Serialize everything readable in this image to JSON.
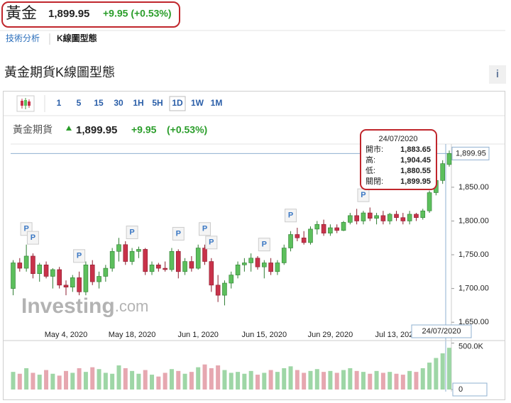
{
  "header": {
    "name": "黃金",
    "price": "1,899.95",
    "change": "+9.95 (+0.53%)"
  },
  "nav": {
    "items": [
      "技術分析",
      "K線圖型態"
    ]
  },
  "section_title": "黃金期貨K線圖型態",
  "info_icon": "i",
  "toolbar": {
    "intervals": [
      "1",
      "5",
      "15",
      "30",
      "1H",
      "5H",
      "1D",
      "1W",
      "1M"
    ],
    "active": "1D"
  },
  "quote": {
    "name": "黃金期貨",
    "price": "1,899.95",
    "change": "+9.95",
    "change_percent": "(+0.53%)"
  },
  "chart_data": {
    "type": "candlestick",
    "categories": [
      null,
      null,
      null,
      null,
      null,
      null,
      null,
      null,
      "May 4, 2020",
      null,
      null,
      null,
      null,
      null,
      null,
      null,
      null,
      null,
      "May 18, 2020",
      null,
      null,
      null,
      null,
      null,
      null,
      null,
      null,
      null,
      "Jun 1, 2020",
      null,
      null,
      null,
      null,
      null,
      null,
      null,
      null,
      null,
      "Jun 15, 2020",
      null,
      null,
      null,
      null,
      null,
      null,
      null,
      null,
      null,
      "Jun 29, 2020",
      null,
      null,
      null,
      null,
      null,
      null,
      null,
      null,
      null,
      "Jul 13, 2020",
      null,
      null,
      null,
      null,
      null,
      null,
      null,
      null
    ],
    "open": [
      1700,
      1738,
      1730,
      1748,
      1722,
      1735,
      1718,
      1728,
      1705,
      1702,
      1716,
      1695,
      1735,
      1710,
      1718,
      1730,
      1755,
      1765,
      1740,
      1755,
      1758,
      1725,
      1735,
      1730,
      1728,
      1755,
      1725,
      1740,
      1730,
      1760,
      1740,
      1705,
      1690,
      1708,
      1720,
      1735,
      1738,
      1745,
      1732,
      1738,
      1725,
      1738,
      1760,
      1780,
      1775,
      1768,
      1788,
      1795,
      1782,
      1790,
      1786,
      1798,
      1808,
      1800,
      1812,
      1804,
      1808,
      1800,
      1810,
      1805,
      1800,
      1810,
      1805,
      1815,
      1842,
      1860,
      1883.65
    ],
    "high": [
      1742,
      1745,
      1765,
      1752,
      1738,
      1740,
      1730,
      1732,
      1712,
      1720,
      1725,
      1740,
      1742,
      1725,
      1735,
      1760,
      1775,
      1770,
      1760,
      1762,
      1760,
      1740,
      1738,
      1740,
      1760,
      1758,
      1745,
      1748,
      1765,
      1765,
      1745,
      1720,
      1712,
      1725,
      1740,
      1745,
      1752,
      1748,
      1742,
      1745,
      1742,
      1765,
      1785,
      1790,
      1785,
      1792,
      1800,
      1802,
      1795,
      1795,
      1800,
      1812,
      1818,
      1815,
      1820,
      1812,
      1815,
      1812,
      1815,
      1812,
      1815,
      1812,
      1818,
      1845,
      1865,
      1890,
      1904.45
    ],
    "low": [
      1690,
      1725,
      1725,
      1715,
      1710,
      1715,
      1700,
      1700,
      1690,
      1695,
      1690,
      1690,
      1705,
      1700,
      1710,
      1725,
      1740,
      1735,
      1735,
      1745,
      1720,
      1720,
      1725,
      1725,
      1725,
      1715,
      1720,
      1725,
      1728,
      1735,
      1695,
      1680,
      1675,
      1700,
      1715,
      1725,
      1725,
      1728,
      1715,
      1720,
      1720,
      1735,
      1755,
      1770,
      1765,
      1765,
      1780,
      1778,
      1778,
      1782,
      1785,
      1795,
      1795,
      1795,
      1800,
      1795,
      1795,
      1795,
      1800,
      1795,
      1795,
      1800,
      1802,
      1812,
      1838,
      1855,
      1880.55
    ],
    "close": [
      1738,
      1730,
      1748,
      1722,
      1735,
      1718,
      1728,
      1705,
      1702,
      1716,
      1695,
      1735,
      1710,
      1718,
      1730,
      1755,
      1765,
      1740,
      1755,
      1758,
      1725,
      1735,
      1730,
      1728,
      1755,
      1725,
      1740,
      1730,
      1760,
      1740,
      1705,
      1690,
      1708,
      1720,
      1735,
      1738,
      1745,
      1732,
      1738,
      1725,
      1738,
      1760,
      1780,
      1775,
      1768,
      1788,
      1795,
      1782,
      1790,
      1786,
      1798,
      1808,
      1800,
      1812,
      1804,
      1808,
      1800,
      1810,
      1805,
      1800,
      1810,
      1805,
      1815,
      1842,
      1860,
      1885,
      1899.95
    ],
    "volume": [
      190000,
      170000,
      230000,
      180000,
      160000,
      210000,
      170000,
      150000,
      200000,
      180000,
      230000,
      190000,
      240000,
      220000,
      180000,
      170000,
      260000,
      230000,
      200000,
      170000,
      210000,
      160000,
      140000,
      180000,
      220000,
      200000,
      170000,
      190000,
      240000,
      270000,
      230000,
      260000,
      210000,
      180000,
      190000,
      170000,
      200000,
      160000,
      180000,
      210000,
      190000,
      230000,
      250000,
      210000,
      180000,
      200000,
      220000,
      190000,
      200000,
      180000,
      210000,
      230000,
      200000,
      190000,
      170000,
      200000,
      180000,
      190000,
      170000,
      160000,
      200000,
      190000,
      230000,
      290000,
      340000,
      390000,
      450000
    ],
    "up_color": "#5cbf5c",
    "down_color": "#c8324a",
    "volume_up_color": "#9ed6a6",
    "volume_down_color": "#e6a7b0",
    "ylim": [
      1646,
      1914
    ],
    "yticks": [
      {
        "value": 1650,
        "label": "1,650.00"
      },
      {
        "value": 1700,
        "label": "1,700.00"
      },
      {
        "value": 1750,
        "label": "1,750.00"
      },
      {
        "value": 1800,
        "label": "1,800.00"
      },
      {
        "value": 1850,
        "label": "1,850.00"
      }
    ],
    "last_price": {
      "value": 1899.95,
      "label": "1,899.95"
    },
    "volume_ylim": [
      0,
      520000
    ],
    "volume_yticks": [
      {
        "value": 500000,
        "label": "500.0K"
      },
      0
    ],
    "crosshair_date": "24/07/2020",
    "flags": [
      {
        "text": "P",
        "at": 2
      },
      {
        "text": "P",
        "at": 3
      },
      {
        "text": "P",
        "at": 10
      },
      {
        "text": "P",
        "at": 18
      },
      {
        "text": "P",
        "at": 25
      },
      {
        "text": "P",
        "at": 29
      },
      {
        "text": "P",
        "at": 30
      },
      {
        "text": "P",
        "at": 38
      },
      {
        "text": "P",
        "at": 42
      },
      {
        "text": "P",
        "at": 53
      }
    ],
    "watermark": {
      "brand": "Investing",
      "suffix": ".com"
    },
    "tooltip": {
      "date": "24/07/2020",
      "rows": [
        {
          "label": "開市:",
          "value": "1,883.65"
        },
        {
          "label": "高:",
          "value": "1,904.45"
        },
        {
          "label": "低:",
          "value": "1,880.55"
        },
        {
          "label": "關閉:",
          "value": "1,899.95"
        }
      ]
    }
  }
}
